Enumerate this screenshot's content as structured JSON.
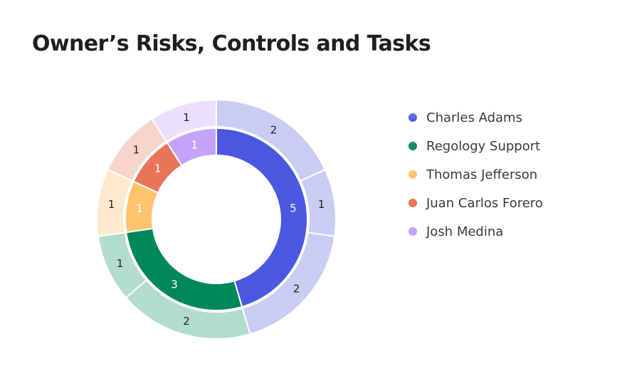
{
  "chart_data": {
    "type": "pie",
    "subtype": "nested-donut",
    "title": "Owner’s Risks, Controls and Tasks",
    "legend_position": "right",
    "owners": [
      {
        "name": "Charles Adams",
        "value": 5,
        "color": "#4a57e0",
        "light_color": "#c8cdf4",
        "legend_color": "#6d78e6",
        "outer_values": [
          2,
          1,
          2
        ]
      },
      {
        "name": "Regology Support",
        "value": 3,
        "color": "#00875a",
        "light_color": "#b3dccd",
        "legend_color": "#1f9466",
        "outer_values": [
          2,
          1
        ]
      },
      {
        "name": "Thomas Jefferson",
        "value": 1,
        "color": "#ffc46b",
        "light_color": "#fde9cc",
        "legend_color": "#ffc46b",
        "outer_values": [
          1
        ]
      },
      {
        "name": "Juan Carlos Forero",
        "value": 1,
        "color": "#ea7458",
        "light_color": "#f6d5cd",
        "legend_color": "#ea7458",
        "outer_values": [
          1
        ]
      },
      {
        "name": "Josh Medina",
        "value": 1,
        "color": "#c4a3fa",
        "light_color": "#ebe0fc",
        "legend_color": "#c4a3fa",
        "outer_values": [
          1
        ]
      }
    ]
  }
}
